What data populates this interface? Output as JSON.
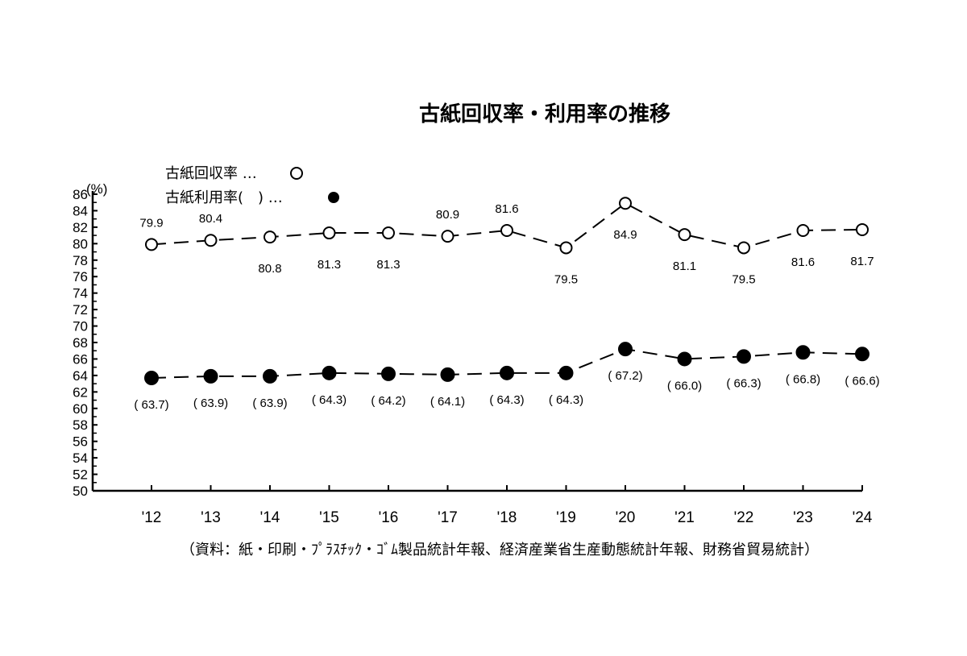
{
  "chart_data": {
    "type": "line",
    "title": "古紙回収率・利用率の推移",
    "xlabel": "",
    "ylabel": "(%)",
    "ylim": [
      50,
      86
    ],
    "yticks": [
      50,
      52,
      54,
      56,
      58,
      60,
      62,
      64,
      66,
      68,
      70,
      72,
      74,
      76,
      78,
      80,
      82,
      84,
      86
    ],
    "categories": [
      "'12",
      "'13",
      "'14",
      "'15",
      "'16",
      "'17",
      "'18",
      "'19",
      "'20",
      "'21",
      "'22",
      "'23",
      "'24"
    ],
    "grid": false,
    "legend_position": "top-left",
    "series": [
      {
        "name": "古紙回収率",
        "legend_label": "古紙回収率 …○",
        "marker": "open-circle",
        "line_style": "dashed",
        "values": [
          79.9,
          80.4,
          80.8,
          81.3,
          81.3,
          80.9,
          81.6,
          79.5,
          84.9,
          81.1,
          79.5,
          81.6,
          81.7
        ],
        "labels": [
          "79.9",
          "80.4",
          "80.8",
          "81.3",
          "81.3",
          "80.9",
          "81.6",
          "79.5",
          "84.9",
          "81.1",
          "79.5",
          "81.6",
          "81.7"
        ],
        "label_positions": [
          "above",
          "above",
          "below",
          "below",
          "below",
          "above",
          "above",
          "below",
          "below",
          "below",
          "below",
          "below",
          "below"
        ]
      },
      {
        "name": "古紙利用率",
        "legend_label": "古紙利用率(　) …●",
        "marker": "filled-circle",
        "line_style": "dashed",
        "values": [
          63.7,
          63.9,
          63.9,
          64.3,
          64.2,
          64.1,
          64.3,
          64.3,
          67.2,
          66.0,
          66.3,
          66.8,
          66.6
        ],
        "labels": [
          "( 63.7)",
          "( 63.9)",
          "( 63.9)",
          "( 64.3)",
          "( 64.2)",
          "( 64.1)",
          "( 64.3)",
          "( 64.3)",
          "( 67.2)",
          "( 66.0)",
          "( 66.3)",
          "( 66.8)",
          "( 66.6)"
        ],
        "label_positions": [
          "below",
          "below",
          "below",
          "below",
          "below",
          "below",
          "below",
          "below",
          "below",
          "below",
          "below",
          "below",
          "below"
        ]
      }
    ],
    "source_note": "（資料：紙・印刷・ﾌﾟﾗｽﾁｯｸ・ｺﾞﾑ製品統計年報、経済産業省生産動態統計年報、財務省貿易統計）"
  },
  "legend": {
    "recovery_label": "古紙回収率 …",
    "usage_label": "古紙利用率(　) …"
  },
  "colors": {
    "line": "#000000",
    "background": "#ffffff"
  }
}
